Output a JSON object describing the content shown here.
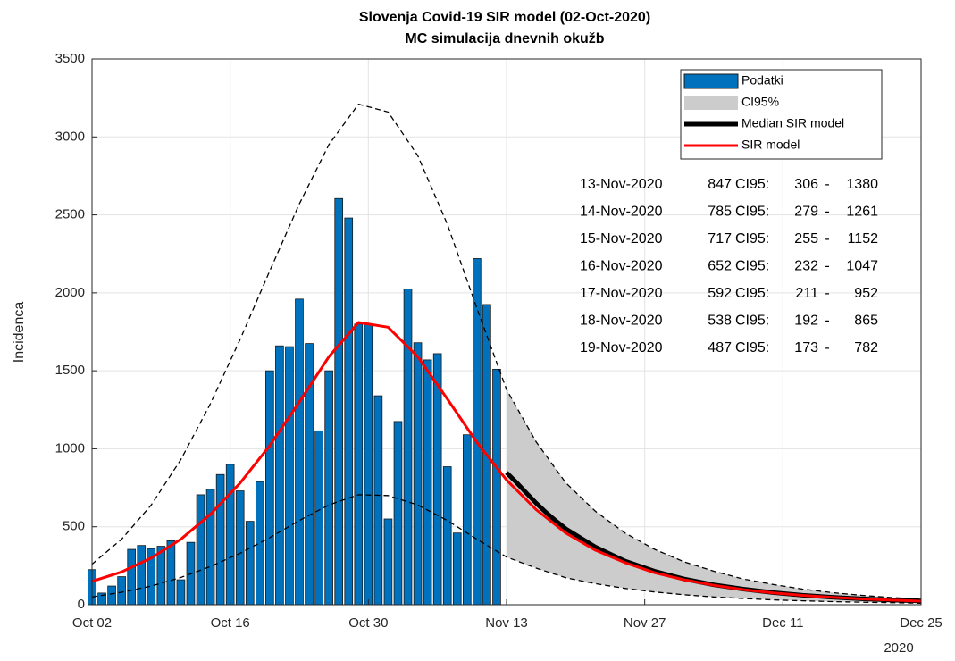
{
  "chart_data": {
    "type": "bar",
    "title": "Slovenja Covid-19 SIR model (02-Oct-2020)",
    "subtitle": "MC simulacija dnevnih okužb",
    "y_label": "Incidenca",
    "x_year_label": "2020",
    "xlim": [
      0,
      84
    ],
    "xticks": [
      {
        "value": 0,
        "label": "Oct 02"
      },
      {
        "value": 14,
        "label": "Oct 16"
      },
      {
        "value": 28,
        "label": "Oct 30"
      },
      {
        "value": 42,
        "label": "Nov 13"
      },
      {
        "value": 56,
        "label": "Nov 27"
      },
      {
        "value": 70,
        "label": "Dec 11"
      },
      {
        "value": 84,
        "label": "Dec 25"
      }
    ],
    "ylim": [
      0,
      3500
    ],
    "yticks": [
      0,
      500,
      1000,
      1500,
      2000,
      2500,
      3000,
      3500
    ],
    "grid": true,
    "legend": "upper right",
    "series": [
      {
        "name": "Podatki",
        "kind": "bar",
        "color": "#0072bd",
        "x": [
          0,
          1,
          2,
          3,
          4,
          5,
          6,
          7,
          8,
          9,
          10,
          11,
          12,
          13,
          14,
          15,
          16,
          17,
          18,
          19,
          20,
          21,
          22,
          23,
          24,
          25,
          26,
          27,
          28,
          29,
          30,
          31,
          32,
          33,
          34,
          35,
          36,
          37,
          38,
          39,
          40,
          41
        ],
        "values": [
          225,
          75,
          120,
          180,
          355,
          380,
          360,
          375,
          410,
          160,
          400,
          705,
          740,
          835,
          900,
          730,
          535,
          790,
          1500,
          1660,
          1655,
          1960,
          1675,
          1115,
          1500,
          2605,
          2480,
          1800,
          1800,
          1340,
          550,
          1175,
          2025,
          1680,
          1570,
          1610,
          885,
          460,
          1090,
          2220,
          1925,
          1510
        ]
      },
      {
        "name": "CI95%",
        "kind": "band",
        "color": "#cccccc"
      },
      {
        "name": "Median SIR model",
        "kind": "line",
        "color": "#000000",
        "x": [
          42,
          43,
          44,
          45,
          46,
          47,
          48,
          51,
          54,
          57,
          60,
          63,
          66,
          69,
          72,
          75,
          78,
          81,
          84
        ],
        "values": [
          847,
          785,
          717,
          652,
          592,
          538,
          487,
          370,
          280,
          215,
          165,
          128,
          100,
          78,
          61,
          48,
          38,
          30,
          24
        ]
      },
      {
        "name": "SIR model",
        "kind": "line",
        "color": "#ff0000",
        "x": [
          0,
          3,
          6,
          9,
          12,
          15,
          18,
          21,
          24,
          27,
          30,
          33,
          36,
          39,
          42,
          45,
          48,
          51,
          54,
          57,
          60,
          63,
          66,
          69,
          72,
          75,
          78,
          81,
          84
        ],
        "values": [
          150,
          210,
          300,
          420,
          580,
          780,
          1020,
          1300,
          1590,
          1810,
          1780,
          1590,
          1320,
          1040,
          800,
          610,
          460,
          350,
          270,
          205,
          160,
          125,
          97,
          76,
          60,
          47,
          37,
          29,
          23
        ]
      }
    ],
    "ci_bounds": {
      "x": [
        0,
        3,
        6,
        9,
        12,
        15,
        18,
        21,
        24,
        27,
        30,
        33,
        36,
        39,
        42,
        45,
        48,
        51,
        54,
        57,
        60,
        63,
        66,
        69,
        72,
        75,
        78,
        81,
        84
      ],
      "upper": [
        260,
        420,
        640,
        930,
        1290,
        1700,
        2140,
        2570,
        2950,
        3210,
        3160,
        2880,
        2440,
        1900,
        1380,
        1045,
        782,
        600,
        460,
        355,
        275,
        215,
        165,
        130,
        100,
        78,
        60,
        46,
        36
      ],
      "lower": [
        50,
        80,
        120,
        175,
        245,
        330,
        430,
        540,
        640,
        705,
        700,
        640,
        540,
        420,
        306,
        235,
        173,
        135,
        105,
        82,
        64,
        50,
        40,
        31,
        25,
        20,
        16,
        13,
        10
      ]
    },
    "forecast_table": {
      "ci_label": "CI95:",
      "separator": "-",
      "rows": [
        {
          "date": "13-Nov-2020",
          "median": 847,
          "low": 306,
          "high": 1380
        },
        {
          "date": "14-Nov-2020",
          "median": 785,
          "low": 279,
          "high": 1261
        },
        {
          "date": "15-Nov-2020",
          "median": 717,
          "low": 255,
          "high": 1152
        },
        {
          "date": "16-Nov-2020",
          "median": 652,
          "low": 232,
          "high": 1047
        },
        {
          "date": "17-Nov-2020",
          "median": 592,
          "low": 211,
          "high": 952
        },
        {
          "date": "18-Nov-2020",
          "median": 538,
          "low": 192,
          "high": 865
        },
        {
          "date": "19-Nov-2020",
          "median": 487,
          "low": 173,
          "high": 782
        }
      ]
    }
  }
}
